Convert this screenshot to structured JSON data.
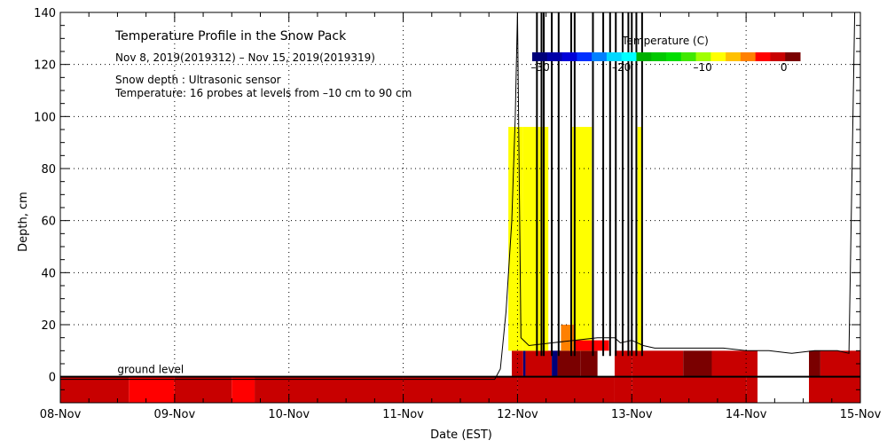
{
  "chart_data": {
    "type": "heatmap",
    "title": "Temperature Profile in the Snow Pack",
    "subtitle": "Nov  8, 2019(2019312) – Nov 15, 2019(2019319)",
    "info_lines": [
      "Snow depth : Ultrasonic sensor",
      "Temperature: 16 probes at levels from –10 cm to 90 cm"
    ],
    "xlabel": "Date (EST)",
    "ylabel": "Depth, cm",
    "x_tick_labels": [
      "08-Nov",
      "09-Nov",
      "10-Nov",
      "11-Nov",
      "12-Nov",
      "13-Nov",
      "14-Nov",
      "15-Nov"
    ],
    "x_range_days": [
      0,
      7
    ],
    "y_ticks": [
      0,
      20,
      40,
      60,
      80,
      100,
      120,
      140
    ],
    "y_range": [
      -10,
      140
    ],
    "ground_level_label": "ground level",
    "grid": true,
    "colorbar": {
      "title": "Temperature (C)",
      "tick_labels": [
        "–30",
        "–20",
        "–10",
        "0"
      ],
      "tick_values": [
        -30,
        -20,
        -10,
        0
      ],
      "range": [
        -31,
        2
      ],
      "colors": [
        "#00007a",
        "#0000a8",
        "#0000d8",
        "#0030ff",
        "#0080ff",
        "#00d8ff",
        "#00ffff",
        "#00b000",
        "#00c800",
        "#00dd00",
        "#40e800",
        "#a0ff00",
        "#ffff00",
        "#ffc000",
        "#ff8000",
        "#ff0000",
        "#c80000",
        "#7a0000"
      ]
    },
    "snow_depth_series": {
      "name": "Snow depth",
      "points": [
        [
          0.0,
          -1
        ],
        [
          3.8,
          -1
        ],
        [
          3.85,
          3
        ],
        [
          3.9,
          25
        ],
        [
          3.95,
          60
        ],
        [
          3.98,
          100
        ],
        [
          4.0,
          140
        ],
        [
          4.0,
          140
        ],
        [
          4.03,
          15
        ],
        [
          4.1,
          12
        ],
        [
          4.3,
          13
        ],
        [
          4.5,
          14
        ],
        [
          4.7,
          15
        ],
        [
          4.85,
          15
        ],
        [
          4.9,
          13
        ],
        [
          5.0,
          14
        ],
        [
          5.1,
          12
        ],
        [
          5.2,
          11
        ],
        [
          5.4,
          11
        ],
        [
          5.6,
          11
        ],
        [
          5.8,
          11
        ],
        [
          6.0,
          10
        ],
        [
          6.2,
          10
        ],
        [
          6.4,
          9
        ],
        [
          6.6,
          10
        ],
        [
          6.8,
          10
        ],
        [
          6.9,
          9
        ],
        [
          6.95,
          140
        ],
        [
          6.97,
          140
        ],
        [
          7.0,
          140
        ]
      ]
    },
    "vertical_spikes_days": [
      4.17,
      4.21,
      4.23,
      4.3,
      4.36,
      4.47,
      4.5,
      4.66,
      4.75,
      4.81,
      4.86,
      4.92,
      4.97,
      5.0,
      5.04,
      5.09
    ],
    "temperature_blocks": [
      {
        "x0": 0.0,
        "x1": 0.6,
        "y0": -10,
        "y1": 0,
        "temp": -1
      },
      {
        "x0": 0.6,
        "x1": 1.0,
        "y0": -10,
        "y1": 0,
        "temp": -2
      },
      {
        "x0": 1.0,
        "x1": 1.5,
        "y0": -10,
        "y1": 0,
        "temp": -1
      },
      {
        "x0": 1.5,
        "x1": 1.7,
        "y0": -10,
        "y1": 0,
        "temp": -2
      },
      {
        "x0": 1.7,
        "x1": 3.0,
        "y0": -10,
        "y1": 0,
        "temp": -1
      },
      {
        "x0": 3.0,
        "x1": 3.5,
        "y0": -10,
        "y1": 0,
        "temp": -1
      },
      {
        "x0": 3.5,
        "x1": 4.0,
        "y0": -10,
        "y1": 0,
        "temp": -1
      },
      {
        "x0": 4.0,
        "x1": 4.85,
        "y0": -10,
        "y1": 0,
        "temp": -1
      },
      {
        "x0": 4.85,
        "x1": 5.0,
        "y0": -10,
        "y1": 0,
        "temp": -1
      },
      {
        "x0": 5.0,
        "x1": 6.0,
        "y0": -10,
        "y1": 0,
        "temp": -1
      },
      {
        "x0": 6.0,
        "x1": 6.1,
        "y0": -10,
        "y1": 0,
        "temp": -1
      },
      {
        "x0": 6.55,
        "x1": 7.0,
        "y0": -10,
        "y1": 0,
        "temp": -1
      },
      {
        "x0": 3.95,
        "x1": 4.05,
        "y0": 0,
        "y1": 10,
        "temp": -1
      },
      {
        "x0": 4.05,
        "x1": 4.07,
        "y0": 0,
        "y1": 10,
        "temp": -30
      },
      {
        "x0": 4.07,
        "x1": 4.3,
        "y0": 0,
        "y1": 10,
        "temp": -1
      },
      {
        "x0": 4.3,
        "x1": 4.35,
        "y0": 0,
        "y1": 10,
        "temp": -30
      },
      {
        "x0": 4.35,
        "x1": 4.55,
        "y0": 0,
        "y1": 10,
        "temp": 1
      },
      {
        "x0": 4.55,
        "x1": 4.7,
        "y0": 0,
        "y1": 10,
        "temp": 1
      },
      {
        "x0": 4.85,
        "x1": 5.0,
        "y0": 0,
        "y1": 10,
        "temp": -1
      },
      {
        "x0": 5.0,
        "x1": 5.45,
        "y0": 0,
        "y1": 10,
        "temp": -1
      },
      {
        "x0": 5.45,
        "x1": 5.7,
        "y0": 0,
        "y1": 10,
        "temp": 1
      },
      {
        "x0": 5.7,
        "x1": 6.1,
        "y0": 0,
        "y1": 10,
        "temp": -1
      },
      {
        "x0": 6.55,
        "x1": 6.65,
        "y0": 0,
        "y1": 10,
        "temp": 1
      },
      {
        "x0": 6.65,
        "x1": 7.0,
        "y0": 0,
        "y1": 10,
        "temp": -1
      },
      {
        "x0": 3.92,
        "x1": 4.05,
        "y0": 10,
        "y1": 96,
        "temp": -8
      },
      {
        "x0": 4.05,
        "x1": 4.27,
        "y0": 10,
        "y1": 96,
        "temp": -8
      },
      {
        "x0": 4.47,
        "x1": 4.65,
        "y0": 10,
        "y1": 96,
        "temp": -8
      },
      {
        "x0": 5.05,
        "x1": 5.09,
        "y0": 10,
        "y1": 96,
        "temp": -8
      },
      {
        "x0": 4.38,
        "x1": 4.5,
        "y0": 10,
        "y1": 20,
        "temp": -5
      },
      {
        "x0": 4.5,
        "x1": 4.8,
        "y0": 10,
        "y1": 14,
        "temp": -3
      }
    ]
  }
}
